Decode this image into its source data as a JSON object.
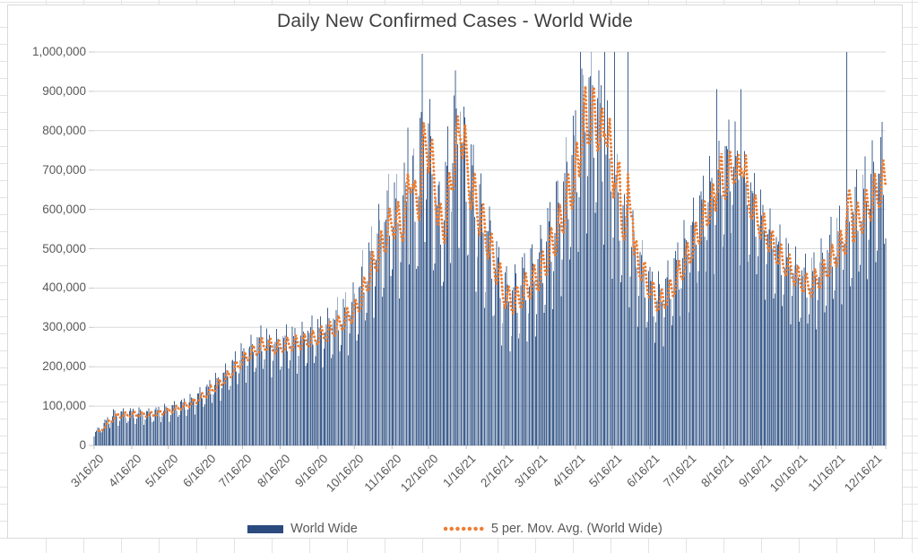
{
  "chart_data": {
    "type": "bar",
    "title": "Daily New Confirmed Cases - World Wide",
    "series_label": "World Wide",
    "moving_average_label": "5 per. Mov. Avg. (World Wide)",
    "moving_average_window": 5,
    "legend_swatch_color": "#2b4b7e",
    "bar_fill_color": "#40608f",
    "moving_avg_color": "#ed7d31",
    "ylabel": "",
    "xlabel": "",
    "ylim": [
      0,
      1000000
    ],
    "gridline_step": 100000,
    "grid": "horizontal",
    "legend_position": "bottom",
    "y_tick_labels": [
      "0",
      "100,000",
      "200,000",
      "300,000",
      "400,000",
      "500,000",
      "600,000",
      "700,000",
      "800,000",
      "900,000",
      "1,000,000"
    ],
    "x_tick_labels": [
      "3/16/20",
      "4/16/20",
      "5/16/20",
      "6/16/20",
      "7/16/20",
      "8/16/20",
      "9/16/20",
      "10/16/20",
      "11/16/20",
      "12/16/20",
      "1/16/21",
      "2/16/21",
      "3/16/21",
      "4/16/21",
      "5/16/21",
      "6/16/21",
      "7/16/21",
      "8/16/21",
      "9/16/21",
      "10/16/21",
      "11/16/21",
      "12/16/21"
    ],
    "x_tick_day_offsets": [
      0,
      31,
      61,
      92,
      122,
      153,
      184,
      214,
      245,
      275,
      306,
      337,
      365,
      396,
      426,
      457,
      487,
      518,
      549,
      579,
      610,
      640
    ],
    "start_date": "3/16/20",
    "total_days": 651,
    "envelope_points": [
      [
        0,
        28000
      ],
      [
        10,
        58000
      ],
      [
        16,
        76000
      ],
      [
        31,
        80000
      ],
      [
        46,
        79000
      ],
      [
        61,
        90000
      ],
      [
        77,
        106000
      ],
      [
        92,
        135000
      ],
      [
        107,
        175000
      ],
      [
        122,
        225000
      ],
      [
        138,
        262000
      ],
      [
        147,
        250000
      ],
      [
        153,
        256000
      ],
      [
        169,
        266000
      ],
      [
        184,
        280000
      ],
      [
        199,
        308000
      ],
      [
        214,
        350000
      ],
      [
        230,
        480000
      ],
      [
        245,
        585000
      ],
      [
        251,
        558000
      ],
      [
        260,
        628000
      ],
      [
        266,
        605000
      ],
      [
        270,
        815000
      ],
      [
        277,
        700000
      ],
      [
        283,
        548000
      ],
      [
        287,
        560000
      ],
      [
        296,
        780000
      ],
      [
        300,
        748000
      ],
      [
        306,
        680000
      ],
      [
        322,
        520000
      ],
      [
        337,
        372000
      ],
      [
        345,
        365000
      ],
      [
        351,
        392000
      ],
      [
        365,
        435000
      ],
      [
        381,
        560000
      ],
      [
        396,
        715000
      ],
      [
        406,
        852000
      ],
      [
        412,
        825000
      ],
      [
        420,
        748000
      ],
      [
        426,
        655000
      ],
      [
        436,
        540000
      ],
      [
        457,
        390000
      ],
      [
        463,
        362000
      ],
      [
        472,
        395000
      ],
      [
        487,
        490000
      ],
      [
        502,
        600000
      ],
      [
        512,
        652000
      ],
      [
        518,
        680000
      ],
      [
        524,
        728000
      ],
      [
        532,
        660000
      ],
      [
        548,
        560000
      ],
      [
        563,
        478000
      ],
      [
        579,
        425000
      ],
      [
        586,
        405000
      ],
      [
        594,
        428000
      ],
      [
        610,
        500000
      ],
      [
        622,
        558000
      ],
      [
        632,
        598000
      ],
      [
        640,
        645000
      ],
      [
        646,
        665000
      ],
      [
        651,
        690000
      ]
    ],
    "weekly_pattern": [
      0.8,
      1.03,
      1.13,
      1.15,
      1.14,
      0.95,
      0.7
    ],
    "spike_days": [
      [
        258,
        808000
      ],
      [
        270,
        995000
      ],
      [
        301,
        848000
      ],
      [
        400,
        1000000
      ],
      [
        420,
        1005000
      ],
      [
        428,
        1000000
      ],
      [
        439,
        1000000
      ],
      [
        512,
        905000
      ],
      [
        532,
        905000
      ],
      [
        619,
        1000000
      ]
    ]
  }
}
